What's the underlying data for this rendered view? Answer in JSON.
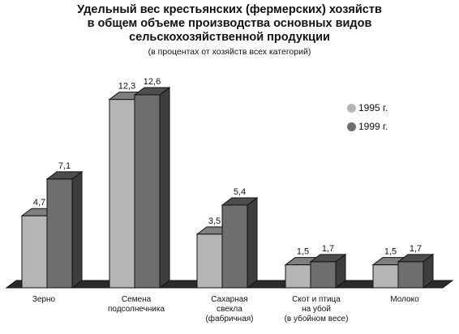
{
  "chart_data": {
    "type": "bar",
    "title_lines": [
      "Удельный вес крестьянских (фермерских) хозяйств",
      "в общем объеме производства основных видов",
      "сельскохозяйственной продукции"
    ],
    "subtitle": "(в процентах от хозяйств всех категорий)",
    "categories": [
      [
        "Зерно"
      ],
      [
        "Семена",
        "подсолнечника"
      ],
      [
        "Сахарная",
        "свекла",
        "(фабричная)"
      ],
      [
        "Скот и птица",
        "на убой",
        "(в убойном весе)"
      ],
      [
        "Молоко"
      ]
    ],
    "series": [
      {
        "name": "1995 г.",
        "values": [
          4.7,
          12.3,
          3.5,
          1.5,
          1.5
        ],
        "labels": [
          "4,7",
          "12,3",
          "3,5",
          "1,5",
          "1,5"
        ],
        "color": "#b5b5b5"
      },
      {
        "name": "1999 г.",
        "values": [
          7.1,
          12.6,
          5.4,
          1.7,
          1.7
        ],
        "labels": [
          "7,1",
          "12,6",
          "5,4",
          "1,7",
          "1,7"
        ],
        "color": "#6e6e6e"
      }
    ],
    "ylim": [
      0,
      12.6
    ],
    "legend_position": "top-right",
    "grid": false
  }
}
